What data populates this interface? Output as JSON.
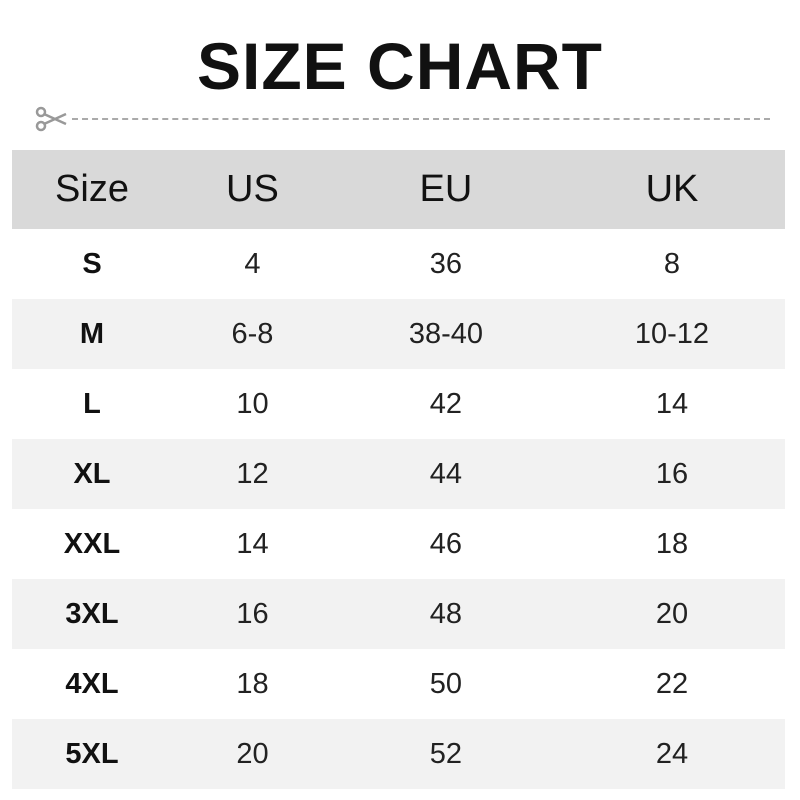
{
  "title": "SIZE CHART",
  "icons": {
    "cut": "scissors-icon"
  },
  "colors": {
    "header_bg": "#d9d9d9",
    "alt_row_bg": "#f2f2f2"
  },
  "table": {
    "headers": [
      "Size",
      "US",
      "EU",
      "UK"
    ],
    "rows": [
      [
        "S",
        "4",
        "36",
        "8"
      ],
      [
        "M",
        "6-8",
        "38-40",
        "10-12"
      ],
      [
        "L",
        "10",
        "42",
        "14"
      ],
      [
        "XL",
        "12",
        "44",
        "16"
      ],
      [
        "XXL",
        "14",
        "46",
        "18"
      ],
      [
        "3XL",
        "16",
        "48",
        "20"
      ],
      [
        "4XL",
        "18",
        "50",
        "22"
      ],
      [
        "5XL",
        "20",
        "52",
        "24"
      ]
    ]
  }
}
